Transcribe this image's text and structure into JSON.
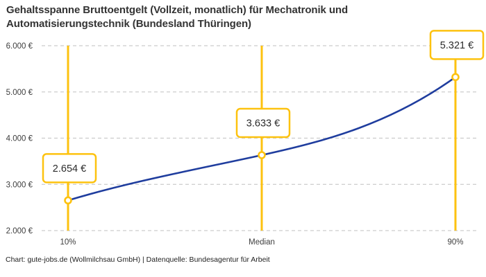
{
  "title": {
    "lines": [
      "Gehaltsspanne Bruttoentgelt (Vollzeit, monatlich) für Mechatronik und",
      "Automatisierungstechnik (Bundesland Thüringen)"
    ],
    "full": "Gehaltsspanne Bruttoentgelt (Vollzeit, monatlich) für Mechatronik und Automatisierungstechnik (Bundesland Thüringen)"
  },
  "footer": "Chart: gute-jobs.de (Wollmilchsau GmbH) | Datenquelle: Bundesagentur für Arbeit",
  "chart_data": {
    "type": "line",
    "title": "Gehaltsspanne Bruttoentgelt (Vollzeit, monatlich) für Mechatronik und Automatisierungstechnik (Bundesland Thüringen)",
    "categories": [
      "10%",
      "Median",
      "90%"
    ],
    "points": [
      {
        "category": "10%",
        "value": 2654,
        "label": "2.654 €"
      },
      {
        "category": "Median",
        "value": 3633,
        "label": "3.633 €"
      },
      {
        "category": "90%",
        "value": 5321,
        "label": "5.321 €"
      }
    ],
    "y_ticks": [
      {
        "value": 2000,
        "label": "2.000 €"
      },
      {
        "value": 3000,
        "label": "3.000 €"
      },
      {
        "value": 4000,
        "label": "4.000 €"
      },
      {
        "value": 5000,
        "label": "5.000 €"
      },
      {
        "value": 6000,
        "label": "6.000 €"
      }
    ],
    "ylim": [
      2000,
      6000
    ],
    "xlabel": "",
    "ylabel": "",
    "grid": "dashed-horizontal",
    "legend": "none",
    "colors": {
      "accent": "#FDC20F",
      "line": "#1F3D9E",
      "grid": "#CCCCCC",
      "tick_text": "#3D3D3D",
      "text": "#2B2B2B",
      "background": "#FFFFFF"
    }
  }
}
